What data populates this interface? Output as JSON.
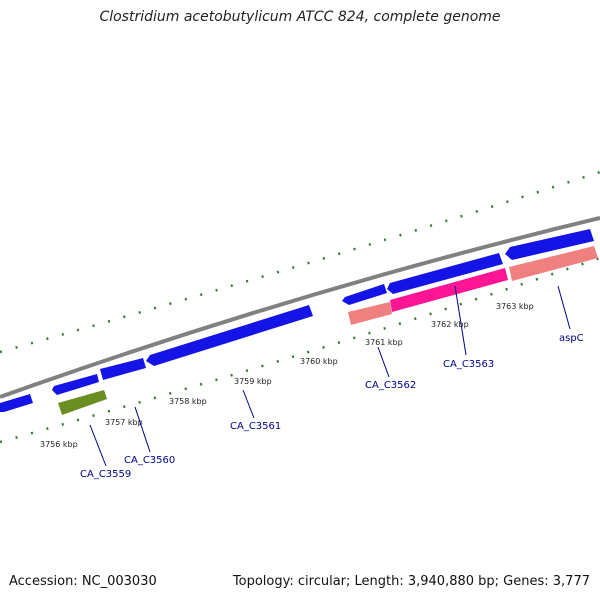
{
  "title": "Clostridium acetobutylicum ATCC 824, complete genome",
  "footer": {
    "accession": "Accession: NC_003030",
    "summary": "Topology: circular; Length: 3,940,880 bp; Genes: 3,777"
  },
  "colors": {
    "backbone": "#808080",
    "cds_blue": "#1414e6",
    "rna_green": "#6b8e23",
    "gene_pink": "#ff1493",
    "gene_salmon": "#f08080",
    "tick_green": "#2e7d32",
    "label_blue": "#00008b"
  },
  "kbp_labels": [
    "3756 kbp",
    "3757 kbp",
    "3758 kbp",
    "3759 kbp",
    "3760 kbp",
    "3761 kbp",
    "3762 kbp",
    "3763 kbp"
  ],
  "gene_labels": [
    "CA_C3559",
    "CA_C3560",
    "CA_C3561",
    "CA_C3562",
    "CA_C3563",
    "aspC"
  ]
}
